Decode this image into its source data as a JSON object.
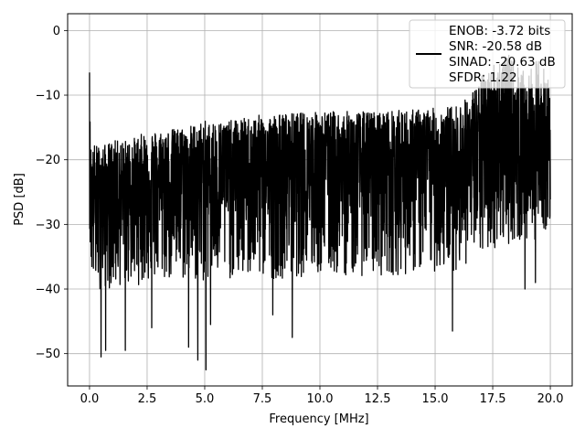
{
  "chart_data": {
    "type": "line",
    "title": "",
    "xlabel": "Frequency [MHz]",
    "ylabel": "PSD [dB]",
    "xlim": [
      -0.95,
      20.95
    ],
    "ylim": [
      -55,
      2.6
    ],
    "xticks": [
      0.0,
      2.5,
      5.0,
      7.5,
      10.0,
      12.5,
      15.0,
      17.5,
      20.0
    ],
    "xtick_labels": [
      "0.0",
      "2.5",
      "5.0",
      "7.5",
      "10.0",
      "12.5",
      "15.0",
      "17.5",
      "20.0"
    ],
    "yticks": [
      0,
      -10,
      -20,
      -30,
      -40,
      -50
    ],
    "ytick_labels": [
      "0",
      "−10",
      "−20",
      "−30",
      "−40",
      "−50"
    ],
    "grid": true,
    "legend_position": "top-right",
    "legend": [
      "ENOB: -3.72 bits",
      "SNR: -20.58 dB",
      "SINAD: -20.63 dB",
      "SFDR: 1.22"
    ],
    "series": [
      {
        "color": "#000000",
        "x": [
          0.0,
          0.02,
          0.05,
          0.1,
          0.2,
          0.5,
          1.0,
          1.5,
          2.0,
          2.5,
          3.0,
          4.0,
          5.0,
          6.0,
          7.5,
          10.0,
          12.5,
          15.0,
          16.0,
          16.5,
          17.0,
          17.5,
          18.0,
          18.5,
          19.0,
          19.5,
          20.0
        ],
        "upper": [
          -6.5,
          -13.0,
          -17.0,
          -19.0,
          -17.5,
          -18.0,
          -17.0,
          -17.0,
          -16.5,
          -15.5,
          -15.5,
          -15.0,
          -14.0,
          -14.0,
          -13.0,
          -12.5,
          -12.5,
          -12.0,
          -11.5,
          -10.0,
          -7.0,
          -5.0,
          -3.0,
          -5.0,
          -7.0,
          -4.0,
          -8.0
        ],
        "mean": [
          -20.0,
          -22.0,
          -24.0,
          -25.0,
          -26.0,
          -26.0,
          -25.5,
          -25.0,
          -24.5,
          -24.0,
          -23.5,
          -23.0,
          -22.5,
          -22.5,
          -22.0,
          -21.5,
          -21.5,
          -21.0,
          -21.0,
          -20.5,
          -20.0,
          -19.5,
          -19.0,
          -19.0,
          -19.5,
          -19.0,
          -20.0
        ],
        "lower": [
          -28.0,
          -35.0,
          -37.0,
          -39.0,
          -40.0,
          -40.0,
          -40.0,
          -39.5,
          -39.5,
          -39.0,
          -39.0,
          -39.0,
          -39.0,
          -38.5,
          -38.5,
          -38.0,
          -38.0,
          -37.5,
          -37.0,
          -36.0,
          -35.0,
          -34.0,
          -33.0,
          -33.0,
          -33.0,
          -32.0,
          -30.0
        ],
        "deep_dips": [
          [
            0.5,
            -50.5
          ],
          [
            0.7,
            -49.5
          ],
          [
            1.55,
            -49.5
          ],
          [
            2.7,
            -46.0
          ],
          [
            4.3,
            -49.0
          ],
          [
            4.7,
            -51.0
          ],
          [
            5.05,
            -52.5
          ],
          [
            5.25,
            -45.5
          ],
          [
            7.95,
            -44.0
          ],
          [
            8.8,
            -47.5
          ],
          [
            15.75,
            -46.5
          ],
          [
            18.9,
            -40.0
          ],
          [
            19.35,
            -39.0
          ]
        ]
      }
    ]
  }
}
